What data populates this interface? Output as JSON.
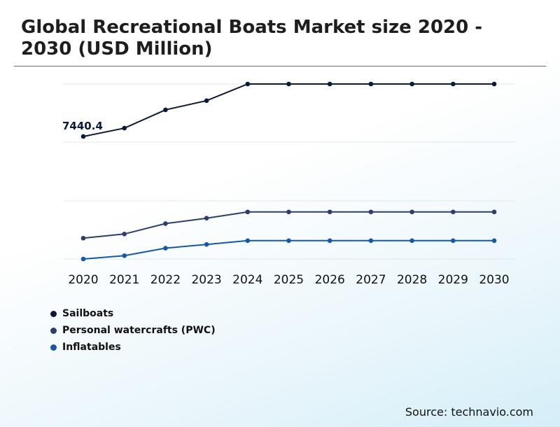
{
  "chart_data": {
    "type": "line",
    "title": "Global Recreational Boats Market size 2020 - 2030 (USD Million)",
    "x": [
      "2020",
      "2021",
      "2022",
      "2023",
      "2024",
      "2025",
      "2026",
      "2027",
      "2028",
      "2029",
      "2030"
    ],
    "series": [
      {
        "name": "Sailboats",
        "color": "#0b1a3a",
        "values": [
          7440.4,
          7640,
          8080,
          8300,
          8700,
          8700,
          8700,
          8700,
          8700,
          8700,
          8700
        ]
      },
      {
        "name": "Personal watercrafts (PWC)",
        "color": "#2c3e6b",
        "values": [
          5000,
          5100,
          5350,
          5480,
          5630,
          5630,
          5630,
          5630,
          5630,
          5630,
          5630
        ]
      },
      {
        "name": "Inflatables",
        "color": "#1558a6",
        "values": [
          4500,
          4580,
          4760,
          4850,
          4940,
          4940,
          4940,
          4940,
          4940,
          4940,
          4940
        ]
      }
    ],
    "data_labels": [
      {
        "series": 0,
        "index": 0,
        "text": "7440.4"
      }
    ],
    "ylim": [
      4500,
      8700
    ],
    "grid": true,
    "legend_position": "bottom-left"
  },
  "source": "Source: technavio.com"
}
